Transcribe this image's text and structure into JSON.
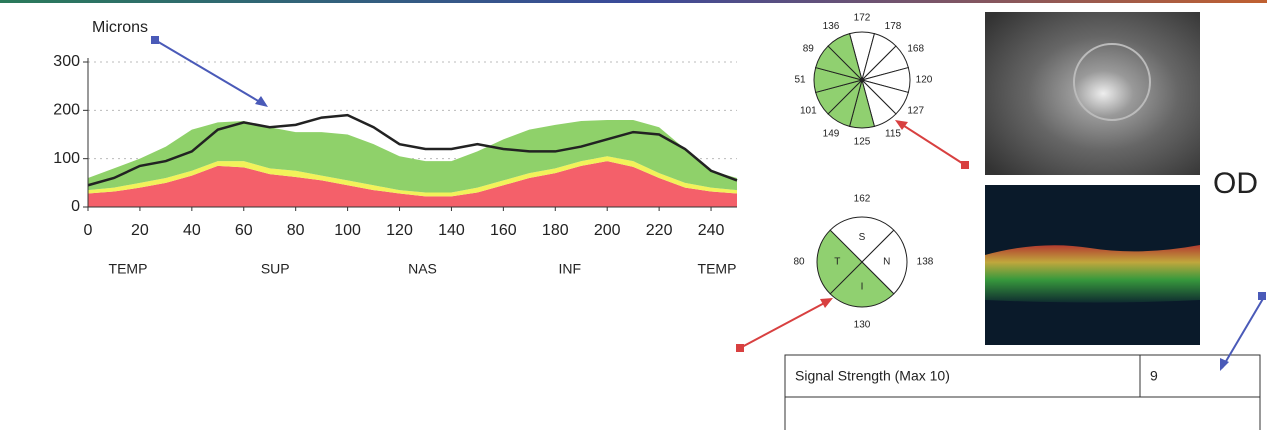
{
  "chart_data": [
    {
      "type": "line",
      "ylabel": "Microns",
      "x": [
        0,
        10,
        20,
        30,
        40,
        50,
        60,
        70,
        80,
        90,
        100,
        110,
        120,
        130,
        140,
        150,
        160,
        170,
        180,
        190,
        200,
        210,
        220,
        230,
        240,
        250
      ],
      "series": [
        {
          "style": "area",
          "color": "#f4606a",
          "values": [
            28,
            32,
            40,
            50,
            65,
            85,
            82,
            68,
            62,
            55,
            45,
            35,
            28,
            22,
            22,
            30,
            45,
            60,
            70,
            85,
            95,
            83,
            60,
            40,
            32,
            28
          ]
        },
        {
          "style": "area",
          "color": "#f2f25a",
          "values": [
            7,
            8,
            10,
            10,
            10,
            10,
            13,
            12,
            13,
            10,
            10,
            10,
            7,
            8,
            8,
            10,
            10,
            10,
            10,
            10,
            10,
            12,
            10,
            10,
            8,
            7
          ]
        },
        {
          "style": "area",
          "color": "#8fd16a",
          "values": [
            25,
            40,
            50,
            65,
            85,
            80,
            83,
            85,
            80,
            90,
            95,
            85,
            70,
            65,
            65,
            75,
            85,
            90,
            90,
            83,
            75,
            85,
            95,
            70,
            35,
            25
          ]
        },
        {
          "style": "line",
          "color": "#222222",
          "values": [
            45,
            60,
            85,
            95,
            115,
            160,
            175,
            165,
            170,
            185,
            190,
            165,
            130,
            120,
            120,
            130,
            120,
            115,
            115,
            125,
            140,
            155,
            150,
            120,
            75,
            55
          ]
        }
      ],
      "xlim": [
        0,
        250
      ],
      "xticks": [
        0,
        20,
        40,
        60,
        80,
        100,
        120,
        140,
        160,
        180,
        200,
        220,
        240
      ],
      "ylim": [
        0,
        300
      ],
      "yticks": [
        0,
        100,
        200,
        300
      ],
      "grid": true,
      "region_labels": [
        "TEMP",
        "SUP",
        "NAS",
        "INF",
        "TEMP"
      ]
    }
  ],
  "clock_hours": {
    "values": [
      172,
      178,
      168,
      120,
      127,
      115,
      125,
      149,
      101,
      51,
      89,
      136
    ],
    "colors": [
      "#ffffff",
      "#ffffff",
      "#ffffff",
      "#ffffff",
      "#ffffff",
      "#ffffff",
      "#90d070",
      "#90d070",
      "#90d070",
      "#90d070",
      "#90d070",
      "#90d070"
    ]
  },
  "quadrants": {
    "labels": [
      "S",
      "N",
      "I",
      "T"
    ],
    "values": [
      162,
      138,
      130,
      80
    ],
    "colors": [
      "#ffffff",
      "#ffffff",
      "#90d070",
      "#90d070"
    ]
  },
  "eye": "OD",
  "table": {
    "rows": [
      [
        "Signal Strength (Max 10)",
        "9"
      ]
    ]
  }
}
